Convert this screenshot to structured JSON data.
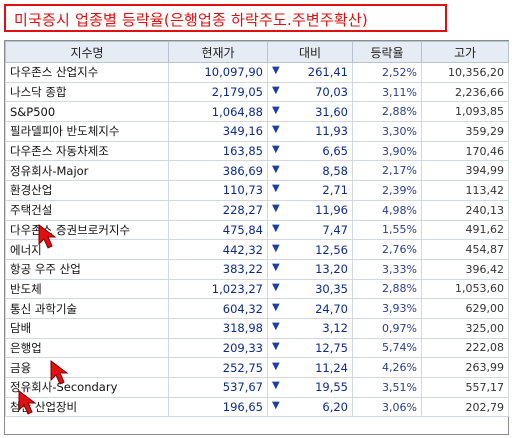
{
  "title": "미국증시 업종별 등락율(은행업종 하락주도.주변주확산)",
  "columns": [
    "지수명",
    "현재가",
    "대비",
    "등락율",
    "고가"
  ],
  "rows": [
    {
      "name": "다우존스 산업지수",
      "price": "10,097,90",
      "dir": "▼",
      "change": "261,41",
      "rate": "2,52%",
      "high": "10,356,20"
    },
    {
      "name": "나스닥 종합",
      "price": "2,179,05",
      "dir": "▼",
      "change": "70,03",
      "rate": "3,11%",
      "high": "2,236,66"
    },
    {
      "name": "S&P500",
      "price": "1,064,88",
      "dir": "▼",
      "change": "31,60",
      "rate": "2,88%",
      "high": "1,093,85"
    },
    {
      "name": "필라델피아 반도체지수",
      "price": "349,16",
      "dir": "▼",
      "change": "11,93",
      "rate": "3,30%",
      "high": "359,29"
    },
    {
      "name": "다우존스 자동차제조",
      "price": "163,85",
      "dir": "▼",
      "change": "6,65",
      "rate": "3,90%",
      "high": "170,46"
    },
    {
      "name": "정유회사-Major",
      "price": "386,69",
      "dir": "▼",
      "change": "8,58",
      "rate": "2,17%",
      "high": "394,99"
    },
    {
      "name": "환경산업",
      "price": "110,73",
      "dir": "▼",
      "change": "2,71",
      "rate": "2,39%",
      "high": "113,42"
    },
    {
      "name": "주택건설",
      "price": "228,27",
      "dir": "▼",
      "change": "11,96",
      "rate": "4,98%",
      "high": "240,13"
    },
    {
      "name": "다우존스 증권브로커지수",
      "price": "475,84",
      "dir": "▼",
      "change": "7,47",
      "rate": "1,55%",
      "high": "491,62"
    },
    {
      "name": "에너지",
      "price": "442,32",
      "dir": "▼",
      "change": "12,56",
      "rate": "2,76%",
      "high": "454,87"
    },
    {
      "name": "항공 우주 산업",
      "price": "383,22",
      "dir": "▼",
      "change": "13,20",
      "rate": "3,33%",
      "high": "396,42"
    },
    {
      "name": "반도체",
      "price": "1,023,27",
      "dir": "▼",
      "change": "30,35",
      "rate": "2,88%",
      "high": "1,053,60"
    },
    {
      "name": "통신 과학기술",
      "price": "604,32",
      "dir": "▼",
      "change": "24,70",
      "rate": "3,93%",
      "high": "629,00"
    },
    {
      "name": "담배",
      "price": "318,98",
      "dir": "▼",
      "change": "3,12",
      "rate": "0,97%",
      "high": "325,00"
    },
    {
      "name": "은행업",
      "price": "209,33",
      "dir": "▼",
      "change": "12,75",
      "rate": "5,74%",
      "high": "222,08"
    },
    {
      "name": "금융",
      "price": "252,75",
      "dir": "▼",
      "change": "11,24",
      "rate": "4,26%",
      "high": "263,99"
    },
    {
      "name": "정유회사-Secondary",
      "price": "537,67",
      "dir": "▼",
      "change": "19,55",
      "rate": "3,51%",
      "high": "557,17"
    },
    {
      "name": "첨단 산업장비",
      "price": "196,65",
      "dir": "▼",
      "change": "6,20",
      "rate": "3,06%",
      "high": "202,79"
    }
  ],
  "colors": {
    "title": "#e01010",
    "header_bg": "#e6ecf3",
    "value_text": "#0b2a8a",
    "cursor": "#e01010"
  },
  "icons": [
    "down-triangle-icon",
    "pointer-arrow-icon"
  ]
}
